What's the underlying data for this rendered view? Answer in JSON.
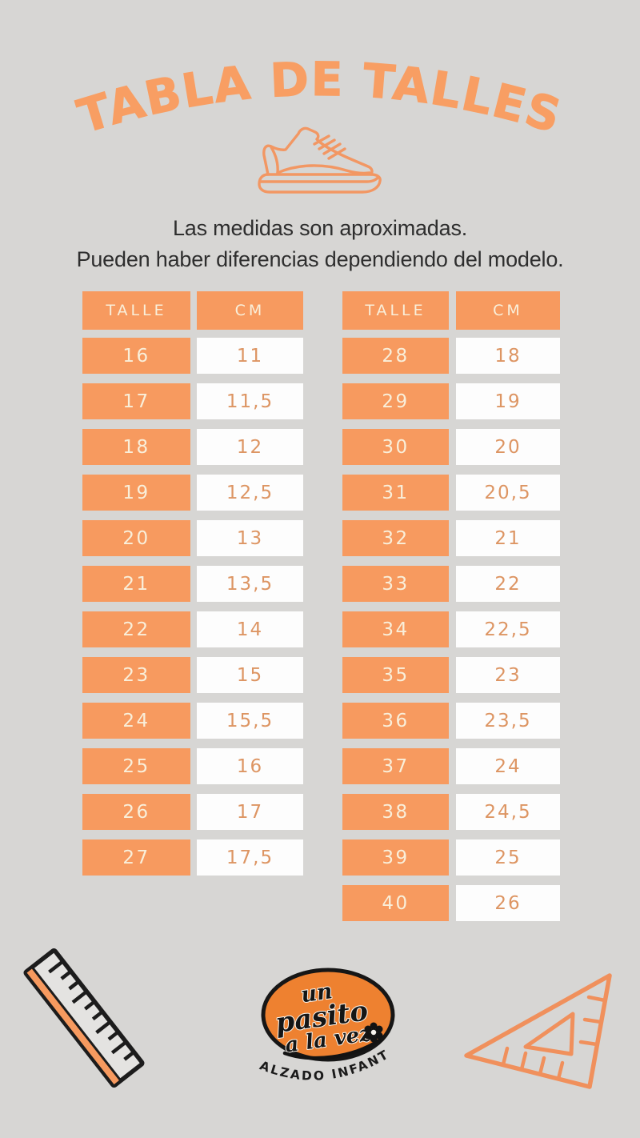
{
  "title": {
    "text": "TABLA DE TALLES",
    "color": "#F89E63"
  },
  "note": {
    "line1": "Las medidas son aproximadas.",
    "line2": "Pueden haber diferencias dependiendo del modelo."
  },
  "tables": [
    {
      "headers": {
        "size": "TALLE",
        "cm": "CM"
      },
      "rows": [
        [
          "16",
          "11"
        ],
        [
          "17",
          "11,5"
        ],
        [
          "18",
          "12"
        ],
        [
          "19",
          "12,5"
        ],
        [
          "20",
          "13"
        ],
        [
          "21",
          "13,5"
        ],
        [
          "22",
          "14"
        ],
        [
          "23",
          "15"
        ],
        [
          "24",
          "15,5"
        ],
        [
          "25",
          "16"
        ],
        [
          "26",
          "17"
        ],
        [
          "27",
          "17,5"
        ]
      ]
    },
    {
      "headers": {
        "size": "TALLE",
        "cm": "CM"
      },
      "rows": [
        [
          "28",
          "18"
        ],
        [
          "29",
          "19"
        ],
        [
          "30",
          "20"
        ],
        [
          "31",
          "20,5"
        ],
        [
          "32",
          "21"
        ],
        [
          "33",
          "22"
        ],
        [
          "34",
          "22,5"
        ],
        [
          "35",
          "23"
        ],
        [
          "36",
          "23,5"
        ],
        [
          "37",
          "24"
        ],
        [
          "38",
          "24,5"
        ],
        [
          "39",
          "25"
        ],
        [
          "40",
          "26"
        ]
      ]
    }
  ],
  "chart_data": [
    {
      "type": "table",
      "title": "TABLA DE TALLES",
      "columns": [
        "TALLE",
        "CM"
      ],
      "rows": [
        [
          16,
          11
        ],
        [
          17,
          11.5
        ],
        [
          18,
          12
        ],
        [
          19,
          12.5
        ],
        [
          20,
          13
        ],
        [
          21,
          13.5
        ],
        [
          22,
          14
        ],
        [
          23,
          15
        ],
        [
          24,
          15.5
        ],
        [
          25,
          16
        ],
        [
          26,
          17
        ],
        [
          27,
          17.5
        ]
      ]
    },
    {
      "type": "table",
      "title": "TABLA DE TALLES",
      "columns": [
        "TALLE",
        "CM"
      ],
      "rows": [
        [
          28,
          18
        ],
        [
          29,
          19
        ],
        [
          30,
          20
        ],
        [
          31,
          20.5
        ],
        [
          32,
          21
        ],
        [
          33,
          22
        ],
        [
          34,
          22.5
        ],
        [
          35,
          23
        ],
        [
          36,
          23.5
        ],
        [
          37,
          24
        ],
        [
          38,
          24.5
        ],
        [
          39,
          25
        ],
        [
          40,
          26
        ]
      ]
    }
  ],
  "logo": {
    "script_line1": "un",
    "script_line2": "pasito",
    "script_line3": "a la vez",
    "tagline": "CALZADO INFANTIL"
  },
  "icons": {
    "header_icon": "sneaker-icon",
    "bottom_left": "ruler-icon",
    "bottom_center": "brand-logo",
    "bottom_right": "set-square-icon"
  },
  "colors": {
    "orange": "#F79A5F",
    "logo_orange": "#EE8130",
    "cream_text": "#F9EFDA",
    "cm_text": "#DD9563",
    "note_text": "#2E2E2E",
    "background": "#D7D6D4",
    "white_cell": "#FDFDFD",
    "outline_black": "#1C1C1C"
  }
}
